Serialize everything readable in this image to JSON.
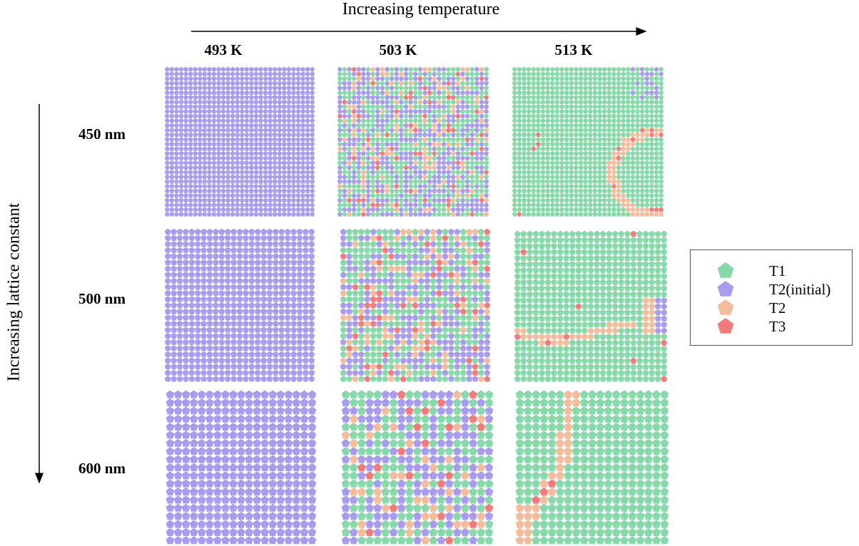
{
  "header": {
    "x_axis_label": "Increasing temperature"
  },
  "side": {
    "y_axis_label": "Increasing lattice constant"
  },
  "columns": [
    {
      "label": "493 K"
    },
    {
      "label": "503 K"
    },
    {
      "label": "513 K"
    }
  ],
  "rows": [
    {
      "label": "450 nm"
    },
    {
      "label": "500 nm"
    },
    {
      "label": "600 nm"
    }
  ],
  "legend": {
    "items": [
      {
        "label": "T1",
        "color": "#86d9a8"
      },
      {
        "label": "T2(initial)",
        "color": "#a89cf0"
      },
      {
        "label": "T2",
        "color": "#f5bc9c"
      },
      {
        "label": "T3",
        "color": "#f57a7a"
      }
    ]
  },
  "panels": [
    {
      "row": "450 nm",
      "column": "493 K",
      "pattern": "uniform-T2(initial)"
    },
    {
      "row": "450 nm",
      "column": "503 K",
      "pattern": "mixed"
    },
    {
      "row": "450 nm",
      "column": "513 K",
      "pattern": "mostly-T1-with-domain-wall"
    },
    {
      "row": "500 nm",
      "column": "493 K",
      "pattern": "uniform-T2(initial)"
    },
    {
      "row": "500 nm",
      "column": "503 K",
      "pattern": "mixed"
    },
    {
      "row": "500 nm",
      "column": "513 K",
      "pattern": "mostly-T1-with-domain-wall"
    },
    {
      "row": "600 nm",
      "column": "493 K",
      "pattern": "uniform-T2(initial)"
    },
    {
      "row": "600 nm",
      "column": "503 K",
      "pattern": "mixed"
    },
    {
      "row": "600 nm",
      "column": "513 K",
      "pattern": "mostly-T1-with-domain-wall"
    }
  ]
}
